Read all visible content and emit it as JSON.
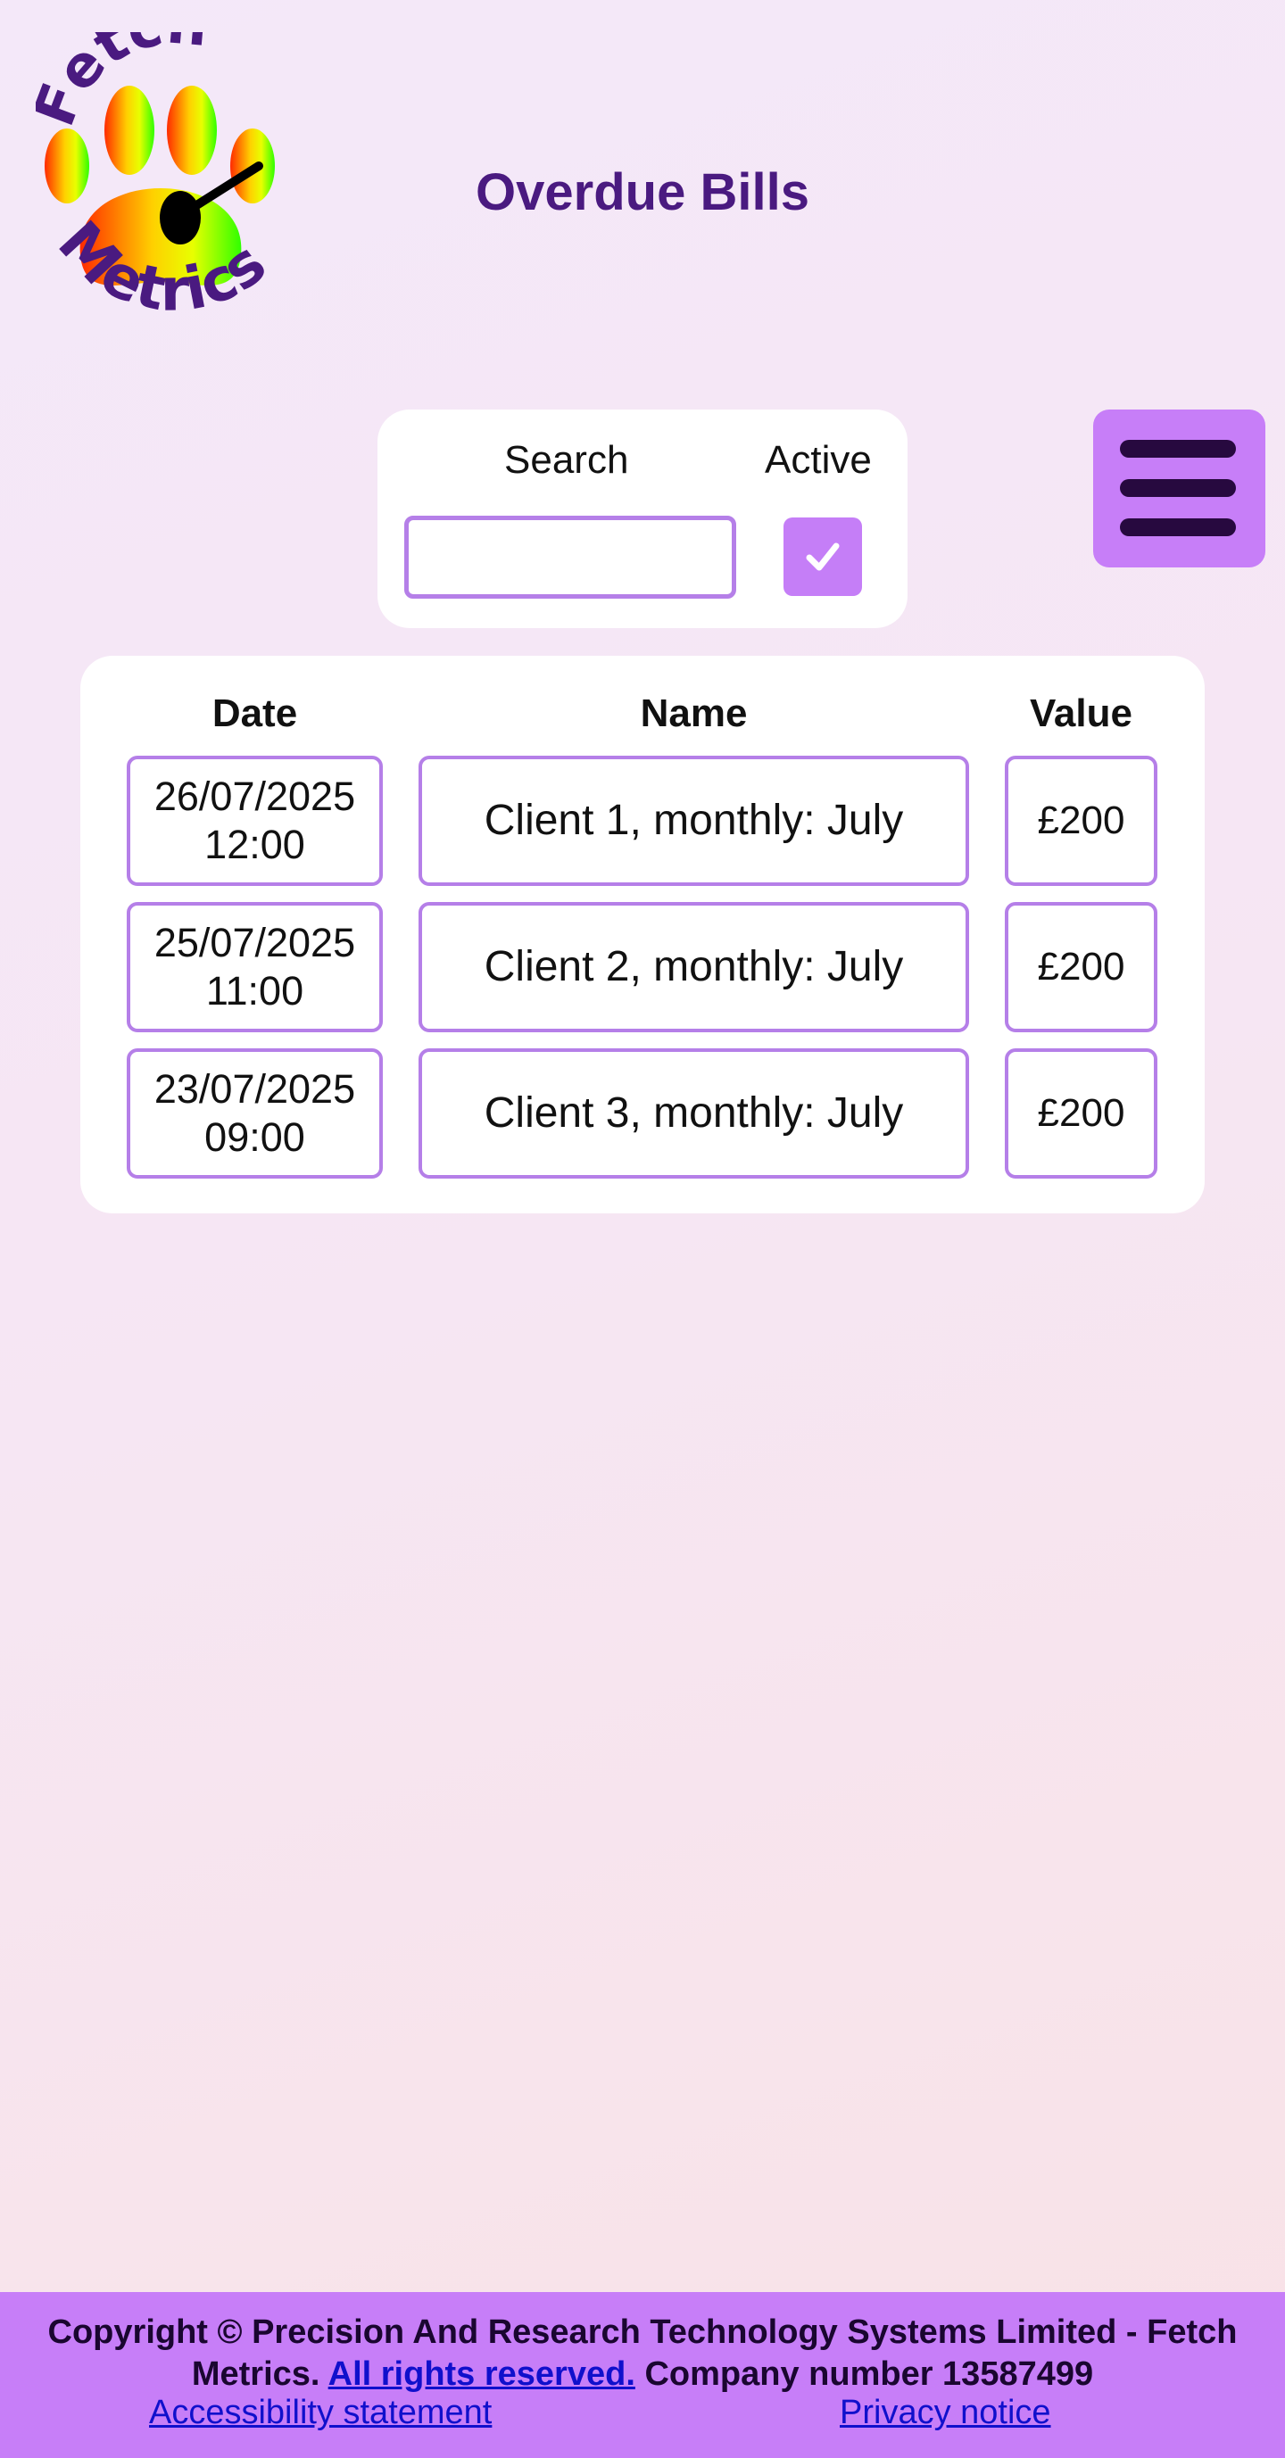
{
  "logo": {
    "text_top": "Fetch",
    "text_bottom": "Metrics"
  },
  "header": {
    "title": "Overdue Bills"
  },
  "filters": {
    "search_label": "Search",
    "search_value": "",
    "search_placeholder": "",
    "active_label": "Active",
    "active_checked": true
  },
  "menu": {
    "icon": "hamburger-icon"
  },
  "table": {
    "headers": [
      "Date",
      "Name",
      "Value"
    ],
    "rows": [
      {
        "date": "26/07/2025",
        "time": "12:00",
        "name": "Client 1, monthly: July",
        "value": "£200"
      },
      {
        "date": "25/07/2025",
        "time": "11:00",
        "name": "Client 2, monthly: July",
        "value": "£200"
      },
      {
        "date": "23/07/2025",
        "time": "09:00",
        "name": "Client 3, monthly: July",
        "value": "£200"
      }
    ]
  },
  "footer": {
    "copyright_pre": "Copyright © Precision And Research Technology Systems Limited - Fetch Metrics.",
    "rights_link": "All rights reserved.",
    "company": "Company number 13587499",
    "accessibility_link": "Accessibility statement",
    "privacy_link": "Privacy notice"
  },
  "colors": {
    "accent": "#c77ef8",
    "border": "#b57fe8",
    "title": "#4a1a80",
    "menu_bars": "#27093f"
  }
}
